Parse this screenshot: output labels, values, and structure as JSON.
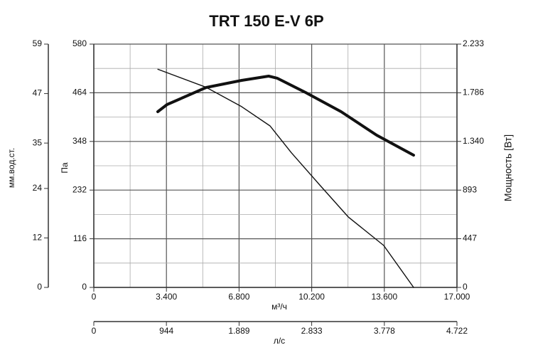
{
  "chart_data": {
    "type": "line",
    "title": "TRT 150 E-V 6P",
    "x_label": "м³/ч",
    "x2_label": "л/с",
    "y_label": "Па",
    "y_outer_label": "мм.вод.ст.",
    "y2_label": "Мощность [Вт]",
    "xlim": [
      0,
      17000
    ],
    "xticks": [
      0,
      {
        "value": 3400,
        "label": "3.400"
      },
      {
        "value": 6800,
        "label": "6.800"
      },
      {
        "value": 10200,
        "label": "10.200"
      },
      {
        "value": 13600,
        "label": "13.600"
      },
      {
        "value": 17000,
        "label": "17.000"
      }
    ],
    "x2lim": [
      0,
      4722
    ],
    "x2ticks": [
      0,
      944,
      {
        "value": 1889,
        "label": "1.889"
      },
      {
        "value": 2833,
        "label": "2.833"
      },
      {
        "value": 3778,
        "label": "3.778"
      },
      {
        "value": 4722,
        "label": "4.722"
      }
    ],
    "ylim": [
      0,
      580
    ],
    "yticks": [
      0,
      116,
      232,
      348,
      464,
      580
    ],
    "y_outer_lim": [
      0,
      59
    ],
    "y_outer_ticks": [
      0,
      12,
      24,
      35,
      47,
      59
    ],
    "y2lim": [
      0,
      2233
    ],
    "y2ticks": [
      0,
      447,
      893,
      {
        "value": 1340,
        "label": "1.340"
      },
      {
        "value": 1786,
        "label": "1.786"
      },
      {
        "value": 2233,
        "label": "2.233"
      }
    ],
    "grid": true,
    "series": [
      {
        "name": "Па",
        "color": "#111111",
        "width": 1.4,
        "x": [
          3000,
          5256,
          6920,
          8250,
          9250,
          10580,
          11910,
          13570,
          14970
        ],
        "values": [
          520,
          477,
          431,
          385,
          321,
          244,
          168,
          100,
          0
        ]
      },
      {
        "name": "Мощность [Вт]",
        "color": "#111111",
        "width": 4,
        "axis": "y2",
        "x": [
          2994,
          3427,
          5256,
          6920,
          8184,
          8583,
          9914,
          11577,
          13240,
          14970
        ],
        "values": [
          1613,
          1678,
          1835,
          1900,
          1939,
          1920,
          1789,
          1613,
          1397,
          1214
        ]
      }
    ]
  }
}
